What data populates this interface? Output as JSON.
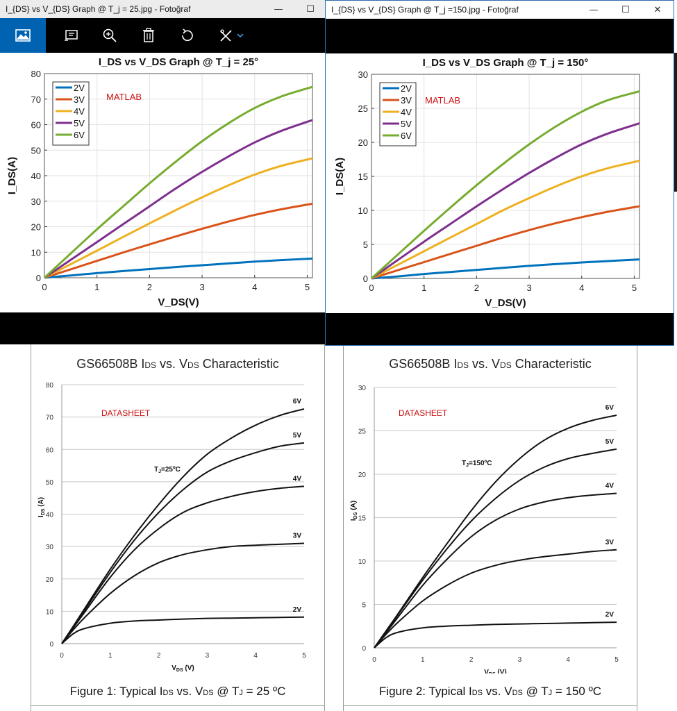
{
  "left_window": {
    "title": "I_{DS} vs V_{DS} Graph @ T_j = 25.jpg - Fotoğraf",
    "controls": {
      "minimize": "—",
      "maximize": "☐"
    },
    "toolbar_icons": [
      "image-icon",
      "slideshow-icon",
      "zoom-in-icon",
      "delete-icon",
      "rotate-icon",
      "edit-icon",
      "chevron-down-icon"
    ]
  },
  "right_window": {
    "title": "I_{DS} vs V_{DS} Graph @ T_j =150.jpg - Fotoğraf",
    "controls": {
      "minimize": "—",
      "maximize": "☐",
      "close": "✕"
    }
  },
  "colors": {
    "2V": "#0072bd",
    "3V": "#d95319",
    "4V": "#edb120",
    "5V": "#7e2f8e",
    "6V": "#77ac30"
  },
  "chart_data": [
    {
      "type": "line",
      "title": "I_DS vs V_DS Graph @ T_j = 25°",
      "annotation": "MATLAB",
      "xlabel": "V_DS(V)",
      "ylabel": "I_DS(A)",
      "xlim": [
        0,
        5.1
      ],
      "ylim": [
        0,
        80
      ],
      "xticks": [
        "0",
        "1",
        "2",
        "3",
        "4",
        "5"
      ],
      "yticks": [
        "0",
        "10",
        "20",
        "30",
        "40",
        "50",
        "60",
        "70",
        "80"
      ],
      "grid": true,
      "legend": "top-left",
      "x": [
        0,
        0.5,
        1,
        1.5,
        2,
        2.5,
        3,
        3.5,
        4,
        4.5,
        5.1
      ],
      "series": [
        {
          "name": "2V",
          "values": [
            0,
            0.9,
            1.8,
            2.6,
            3.4,
            4.2,
            4.9,
            5.6,
            6.3,
            6.9,
            7.5
          ]
        },
        {
          "name": "3V",
          "values": [
            0,
            3.3,
            6.6,
            9.9,
            13.1,
            16.2,
            19.2,
            22,
            24.6,
            26.8,
            29
          ]
        },
        {
          "name": "4V",
          "values": [
            0,
            5.3,
            10.6,
            16,
            21.3,
            26.5,
            31.5,
            36.2,
            40.4,
            43.8,
            46.8
          ]
        },
        {
          "name": "5V",
          "values": [
            0,
            7,
            14,
            21,
            28,
            35,
            41.5,
            47.5,
            53,
            57.5,
            61.8
          ]
        },
        {
          "name": "6V",
          "values": [
            0,
            9.5,
            19,
            28,
            37,
            45.5,
            53.5,
            60.5,
            66.5,
            71,
            74.8
          ]
        }
      ]
    },
    {
      "type": "line",
      "title": "I_DS vs V_DS Graph @ T_j = 150°",
      "annotation": "MATLAB",
      "xlabel": "V_DS(V)",
      "ylabel": "I_DS(A)",
      "xlim": [
        0,
        5.1
      ],
      "ylim": [
        0,
        30
      ],
      "xticks": [
        "0",
        "1",
        "2",
        "3",
        "4",
        "5"
      ],
      "yticks": [
        "0",
        "5",
        "10",
        "15",
        "20",
        "25",
        "30"
      ],
      "grid": true,
      "legend": "top-left",
      "x": [
        0,
        0.5,
        1,
        1.5,
        2,
        2.5,
        3,
        3.5,
        4,
        4.5,
        5.1
      ],
      "series": [
        {
          "name": "2V",
          "values": [
            0,
            0.3,
            0.65,
            0.95,
            1.25,
            1.55,
            1.85,
            2.1,
            2.35,
            2.55,
            2.8
          ]
        },
        {
          "name": "3V",
          "values": [
            0,
            1.2,
            2.4,
            3.6,
            4.8,
            6,
            7.1,
            8.1,
            9,
            9.8,
            10.6
          ]
        },
        {
          "name": "4V",
          "values": [
            0,
            2,
            4,
            6,
            8,
            10,
            11.8,
            13.5,
            15,
            16.2,
            17.3
          ]
        },
        {
          "name": "5V",
          "values": [
            0,
            2.7,
            5.4,
            8,
            10.6,
            13.1,
            15.5,
            17.7,
            19.7,
            21.3,
            22.8
          ]
        },
        {
          "name": "6V",
          "values": [
            0,
            3.5,
            7,
            10.4,
            13.7,
            16.8,
            19.7,
            22.3,
            24.5,
            26.2,
            27.5
          ]
        }
      ]
    },
    {
      "type": "line",
      "title": "GS66508B I",
      "title_sub": "DS",
      "title_rest": " vs. V",
      "title_sub2": "DS",
      "title_end": " Characteristic",
      "annotation": "DATASHEET",
      "condition": "T",
      "condition_sub": "J",
      "condition_rest": "=25ºC",
      "xlabel": "V",
      "xlabel_sub": "DS",
      "xlabel_rest": " (V)",
      "ylabel": "I",
      "ylabel_sub": "DS",
      "ylabel_rest": " (A)",
      "xlim": [
        0,
        5
      ],
      "ylim": [
        0,
        80
      ],
      "xticks": [
        "0",
        "1",
        "2",
        "3",
        "4",
        "5"
      ],
      "yticks": [
        "0",
        "10",
        "20",
        "30",
        "40",
        "50",
        "60",
        "70",
        "80"
      ],
      "grid": true,
      "caption": "Figure 1: Typical I",
      "caption_sub": "DS",
      "caption_mid": " vs. V",
      "caption_sub2": "DS",
      "caption_mid2": " @ T",
      "caption_sub3": "J",
      "caption_end": " = 25 ºC",
      "x": [
        0,
        0.25,
        0.5,
        1,
        1.5,
        2,
        2.5,
        3,
        3.5,
        4,
        4.5,
        5
      ],
      "series": [
        {
          "name": "2V",
          "values": [
            0,
            3.2,
            4.8,
            6.3,
            7,
            7.3,
            7.6,
            7.8,
            7.9,
            8,
            8.1,
            8.2
          ]
        },
        {
          "name": "3V",
          "values": [
            0,
            4.5,
            8.5,
            15.5,
            21,
            25,
            27.5,
            29,
            30,
            30.4,
            30.7,
            31
          ]
        },
        {
          "name": "4V",
          "values": [
            0,
            5.2,
            10.3,
            20.5,
            29,
            35.5,
            40.5,
            43.5,
            45.5,
            47,
            48,
            48.6
          ]
        },
        {
          "name": "5V",
          "values": [
            0,
            5.5,
            11,
            22,
            32,
            40.5,
            47.5,
            53,
            56.5,
            59,
            61,
            62
          ]
        },
        {
          "name": "6V",
          "values": [
            0,
            5.7,
            11.5,
            23,
            33.5,
            43,
            51.5,
            58.5,
            63.5,
            67.5,
            70.5,
            72.5
          ]
        }
      ]
    },
    {
      "type": "line",
      "title": "GS66508B I",
      "title_sub": "DS",
      "title_rest": " vs. V",
      "title_sub2": "DS",
      "title_end": " Characteristic",
      "annotation": "DATASHEET",
      "condition": "T",
      "condition_sub": "J",
      "condition_rest": "=150ºC",
      "xlabel": "V",
      "xlabel_sub": "DS",
      "xlabel_rest": " (V)",
      "ylabel": "I",
      "ylabel_sub": "DS",
      "ylabel_rest": " (A)",
      "xlim": [
        0,
        5
      ],
      "ylim": [
        0,
        30
      ],
      "xticks": [
        "0",
        "1",
        "2",
        "3",
        "4",
        "5"
      ],
      "yticks": [
        "0",
        "5",
        "10",
        "15",
        "20",
        "25",
        "30"
      ],
      "grid": true,
      "caption": "Figure 2: Typical I",
      "caption_sub": "DS",
      "caption_mid": " vs. V",
      "caption_sub2": "DS",
      "caption_mid2": " @ T",
      "caption_sub3": "J",
      "caption_end": " = 150 ºC",
      "x": [
        0,
        0.25,
        0.5,
        1,
        1.5,
        2,
        2.5,
        3,
        3.5,
        4,
        4.5,
        5
      ],
      "series": [
        {
          "name": "2V",
          "values": [
            0,
            1.2,
            1.8,
            2.3,
            2.5,
            2.6,
            2.7,
            2.75,
            2.8,
            2.85,
            2.9,
            2.95
          ]
        },
        {
          "name": "3V",
          "values": [
            0,
            1.6,
            3,
            5.4,
            7.2,
            8.6,
            9.5,
            10.1,
            10.5,
            10.8,
            11.1,
            11.3
          ]
        },
        {
          "name": "4V",
          "values": [
            0,
            1.8,
            3.6,
            7.2,
            10.2,
            12.8,
            14.7,
            16,
            16.8,
            17.3,
            17.6,
            17.8
          ]
        },
        {
          "name": "5V",
          "values": [
            0,
            1.9,
            3.9,
            7.8,
            11.4,
            14.6,
            17.2,
            19.3,
            20.8,
            21.8,
            22.4,
            22.9
          ]
        },
        {
          "name": "6V",
          "values": [
            0,
            2,
            4,
            8.1,
            12,
            15.8,
            19.1,
            21.8,
            23.9,
            25.3,
            26.2,
            26.8
          ]
        }
      ]
    }
  ]
}
